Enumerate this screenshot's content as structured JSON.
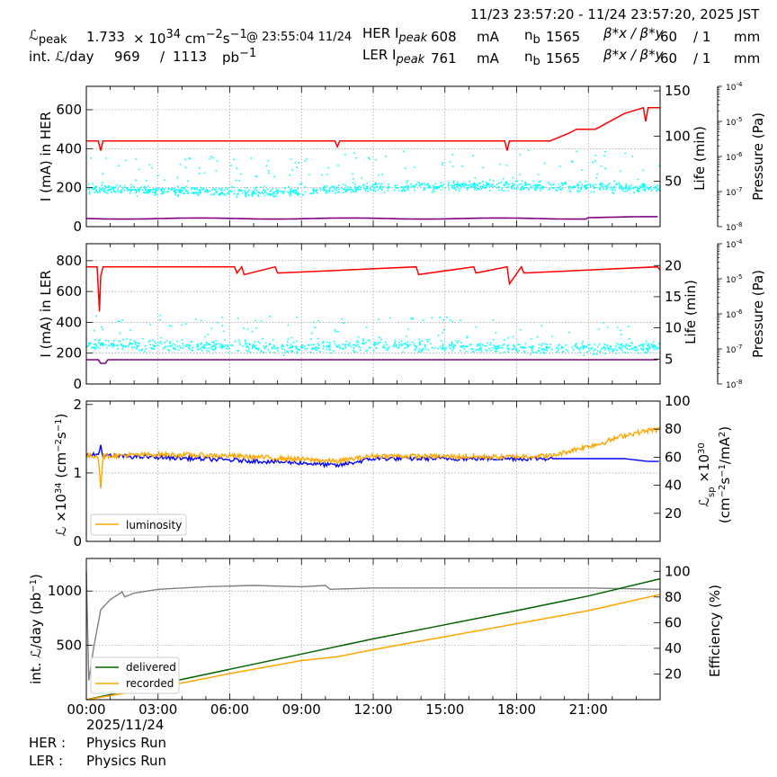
{
  "header": {
    "range": "11/23 23:57:20 - 11/24 23:57:20, 2025 JST",
    "lum_label": "ℒ",
    "lum_sub": "peak",
    "lum_value": "1.733",
    "lum_times": "× 10",
    "lum_exp": "34",
    "lum_unit_pre": "cm",
    "lum_unit_exp1": "−2",
    "lum_unit_mid": "s",
    "lum_unit_exp2": "−1",
    "lum_at": "@ 23:55:04 11/24",
    "int_label": "int. ℒ/day",
    "int_value1": "969",
    "int_slash": "/",
    "int_value2": "1113",
    "int_unit_pre": "pb",
    "int_unit_exp": "−1",
    "her_label": "HER I",
    "her_sub": "peak",
    "her_value": "608",
    "her_unit": "mA",
    "her_nb_label": "n",
    "her_nb_sub": "b",
    "her_nb_value": "1565",
    "beta_label": "β*x / β*y",
    "her_beta_x": "60",
    "her_beta_y": "/ 1",
    "beta_unit": "mm",
    "ler_label": "LER I",
    "ler_sub": "peak",
    "ler_value": "761",
    "ler_unit": "mA",
    "ler_nb_label": "n",
    "ler_nb_sub": "b",
    "ler_nb_value": "1565",
    "ler_beta_x": "60",
    "ler_beta_y": "/ 1"
  },
  "footer": {
    "date": "2025/11/24",
    "her_label": "HER :",
    "her_mode": "Physics Run",
    "ler_label": "LER :",
    "ler_mode": "Physics Run"
  },
  "colors": {
    "current": "#ff0000",
    "lifetime": "#00ffff",
    "pressure": "#800080",
    "luminosity": "#ffa500",
    "specific": "#0000ff",
    "delivered": "#006400",
    "recorded": "#ffa500",
    "efficiency": "#808080"
  },
  "chart_data": [
    {
      "type": "line",
      "ylabel": "I (mA) in HER",
      "y2label": "Life (min)",
      "y3label": "Pressure (Pa)",
      "ylim": [
        0,
        720
      ],
      "y2lim": [
        0,
        155
      ],
      "y3lim": [
        "1e-8",
        "1e-4"
      ],
      "yticks": [
        0,
        200,
        400,
        600
      ],
      "y2ticks": [
        50,
        100,
        150
      ],
      "y3ticks": [
        "10^-8",
        "10^-7",
        "10^-6",
        "10^-5",
        "10^-4"
      ],
      "x_hours": [
        0,
        0.5,
        0.6,
        0.7,
        10.4,
        10.5,
        10.6,
        17.5,
        17.6,
        17.7,
        19.4,
        20.2,
        20.5,
        21.3,
        22.5,
        23.3,
        23.4,
        23.5,
        24
      ],
      "series": [
        {
          "key": "her_current",
          "values": [
            440,
            440,
            390,
            440,
            440,
            410,
            440,
            440,
            390,
            440,
            440,
            480,
            500,
            500,
            580,
            610,
            540,
            610,
            610
          ]
        },
        {
          "key": "her_lifetime",
          "approx_center_min": [
            42,
            40,
            38,
            44,
            46,
            45,
            43
          ]
        },
        {
          "key": "her_pressure",
          "values_approx_log10": [
            -7.82,
            -7.85,
            -7.86,
            -7.84,
            -7.8
          ]
        }
      ]
    },
    {
      "type": "line",
      "ylabel": "I (mA) in LER",
      "y2label": "Life (min)",
      "y3label": "Pressure (Pa)",
      "ylim": [
        0,
        910
      ],
      "y2lim": [
        1,
        23.5
      ],
      "y3lim": [
        "1e-8",
        "1e-4"
      ],
      "yticks": [
        0,
        200,
        400,
        600,
        800
      ],
      "y2ticks": [
        5,
        10,
        15,
        20
      ],
      "y3ticks": [
        "10^-8",
        "10^-7",
        "10^-6",
        "10^-5",
        "10^-4"
      ],
      "x_hours": [
        0,
        0.45,
        0.55,
        0.6,
        0.7,
        6.2,
        6.3,
        6.5,
        6.6,
        7.9,
        8.0,
        13.8,
        13.9,
        16.2,
        16.3,
        17.6,
        17.7,
        18.2,
        18.3,
        23.9,
        24
      ],
      "series": [
        {
          "key": "ler_current",
          "values": [
            760,
            760,
            470,
            700,
            760,
            760,
            720,
            760,
            710,
            760,
            720,
            760,
            710,
            760,
            720,
            760,
            650,
            760,
            720,
            760,
            740
          ]
        },
        {
          "key": "ler_lifetime",
          "approx_center_min": [
            7.5,
            7.2,
            7.0,
            7.3,
            7.0,
            6.8,
            6.9
          ]
        },
        {
          "key": "ler_pressure",
          "values_approx_log10": [
            -7.7,
            -7.72,
            -7.72,
            -7.73,
            -7.73
          ]
        }
      ]
    },
    {
      "type": "line",
      "ylabel": "ℒ ×10^34 (cm^-2 s^-1)",
      "y2label": "ℒsp ×10^30 (cm^-2 s^-1/mA^2)",
      "ylim": [
        0,
        2.05
      ],
      "y2lim": [
        0,
        100
      ],
      "yticks": [
        0,
        1,
        2
      ],
      "y2ticks": [
        20,
        40,
        60,
        80,
        100
      ],
      "legend": [
        "luminosity"
      ],
      "legend_loc": "lower-left",
      "x_hours": [
        0,
        0.5,
        0.6,
        0.7,
        3,
        6,
        9,
        10.5,
        12,
        15,
        17.5,
        18,
        19.5,
        20.5,
        21.5,
        22.5,
        23.5,
        24
      ],
      "series": [
        {
          "key": "luminosity",
          "values": [
            1.25,
            1.25,
            0.8,
            1.25,
            1.27,
            1.25,
            1.2,
            1.17,
            1.25,
            1.24,
            1.23,
            1.24,
            1.25,
            1.35,
            1.43,
            1.55,
            1.62,
            1.64
          ]
        },
        {
          "key": "specific",
          "values": [
            61,
            62,
            68,
            61,
            60,
            58,
            56,
            54,
            59,
            59,
            59,
            59,
            59,
            59,
            59,
            59,
            57,
            57
          ]
        }
      ]
    },
    {
      "type": "line",
      "ylabel": "int. ℒ/day (pb^-1)",
      "y2label": "Efficiency (%)",
      "ylim": [
        0,
        1300
      ],
      "y2lim": [
        0,
        110
      ],
      "yticks": [
        500,
        1000
      ],
      "y2ticks": [
        20,
        40,
        60,
        80,
        100
      ],
      "xticks": [
        "00:00",
        "03:00",
        "06:00",
        "09:00",
        "12:00",
        "15:00",
        "18:00",
        "21:00"
      ],
      "xlim_hours": [
        0,
        24
      ],
      "legend": [
        "delivered",
        "recorded"
      ],
      "legend_loc": "lower-left",
      "x_hours": [
        0,
        3,
        6,
        9,
        10.5,
        12,
        15,
        18,
        21,
        24
      ],
      "series": [
        {
          "key": "delivered",
          "values": [
            0,
            140,
            280,
            420,
            490,
            560,
            690,
            820,
            955,
            1113
          ]
        },
        {
          "key": "recorded",
          "values": [
            0,
            110,
            240,
            360,
            395,
            460,
            580,
            700,
            820,
            969
          ]
        },
        {
          "key": "efficiency",
          "x_hours": [
            0,
            0.1,
            0.3,
            0.6,
            1.0,
            1.5,
            1.6,
            2,
            3,
            5,
            7,
            9,
            10,
            10.2,
            12,
            15,
            18,
            21,
            24
          ],
          "values": [
            100,
            15,
            40,
            70,
            78,
            84,
            80,
            83,
            86,
            88,
            89,
            88,
            89,
            86,
            87,
            87,
            87,
            87,
            86
          ]
        }
      ]
    }
  ]
}
